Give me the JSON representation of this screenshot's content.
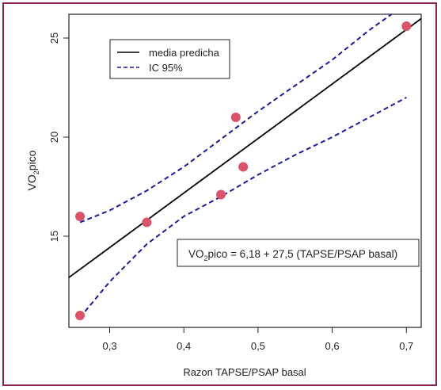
{
  "chart_data": {
    "type": "scatter",
    "xlabel": "Razon TAPSE/PSAP basal",
    "ylabel_main": "VO",
    "ylabel_sub": "2",
    "ylabel_tail": "pico",
    "x_ticks": [
      "0,3",
      "0,4",
      "0,5",
      "0,6",
      "0,7"
    ],
    "x_tick_values": [
      0.3,
      0.4,
      0.5,
      0.6,
      0.7
    ],
    "y_ticks": [
      "15",
      "20",
      "25"
    ],
    "y_tick_values": [
      15,
      20,
      25
    ],
    "xlim": [
      0.245,
      0.72
    ],
    "ylim": [
      10.4,
      26.2
    ],
    "points": [
      {
        "x": 0.26,
        "y": 16.0
      },
      {
        "x": 0.26,
        "y": 11.0
      },
      {
        "x": 0.35,
        "y": 15.7
      },
      {
        "x": 0.45,
        "y": 17.1
      },
      {
        "x": 0.47,
        "y": 21.0
      },
      {
        "x": 0.48,
        "y": 18.5
      },
      {
        "x": 0.7,
        "y": 25.6
      }
    ],
    "fit_line": {
      "intercept": 6.18,
      "slope": 27.5
    },
    "ci_upper": [
      {
        "x": 0.26,
        "y": 15.7
      },
      {
        "x": 0.3,
        "y": 16.3
      },
      {
        "x": 0.35,
        "y": 17.3
      },
      {
        "x": 0.4,
        "y": 18.5
      },
      {
        "x": 0.45,
        "y": 19.9
      },
      {
        "x": 0.5,
        "y": 21.3
      },
      {
        "x": 0.55,
        "y": 22.6
      },
      {
        "x": 0.6,
        "y": 23.9
      },
      {
        "x": 0.65,
        "y": 25.4
      },
      {
        "x": 0.68,
        "y": 26.2
      }
    ],
    "ci_lower": [
      {
        "x": 0.26,
        "y": 10.9
      },
      {
        "x": 0.3,
        "y": 12.7
      },
      {
        "x": 0.35,
        "y": 14.6
      },
      {
        "x": 0.4,
        "y": 16.0
      },
      {
        "x": 0.45,
        "y": 17.0
      },
      {
        "x": 0.5,
        "y": 18.1
      },
      {
        "x": 0.55,
        "y": 19.1
      },
      {
        "x": 0.6,
        "y": 20.0
      },
      {
        "x": 0.65,
        "y": 21.0
      },
      {
        "x": 0.7,
        "y": 22.0
      }
    ],
    "legend": [
      {
        "label": "media predicha",
        "style": "solid",
        "color": "#000000"
      },
      {
        "label": "IC 95%",
        "style": "dashed",
        "color": "#1a1a9a"
      }
    ],
    "legend_position": "top-left",
    "equation": {
      "lhs_main": "VO",
      "lhs_sub": "2",
      "rhs": "pico = 6,18 + 27,5 (TAPSE/PSAP basal)"
    },
    "grid": false,
    "colors": {
      "point": "#d9536b",
      "fit": "#000000",
      "ci": "#1a1a9a",
      "frame": "#8b2252"
    }
  }
}
